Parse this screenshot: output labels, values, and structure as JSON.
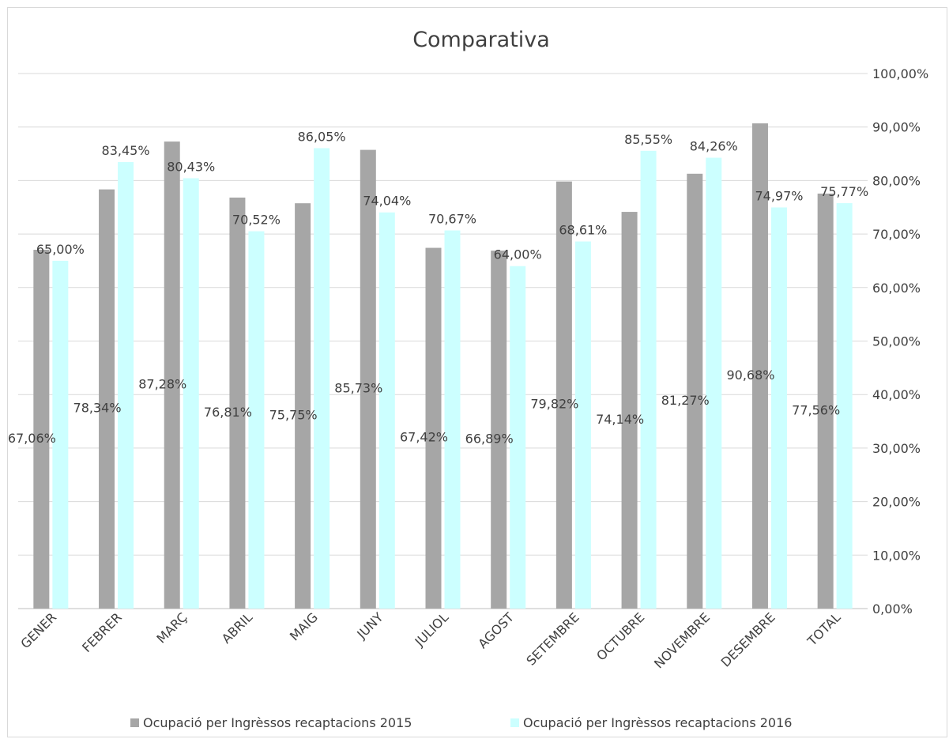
{
  "chart_data": {
    "type": "bar",
    "title": "Comparativa",
    "categories": [
      "GENER",
      "FEBRER",
      "MARÇ",
      "ABRIL",
      "MAIG",
      "JUNY",
      "JULIOL",
      "AGOST",
      "SETEMBRE",
      "OCTUBRE",
      "NOVEMBRE",
      "DESEMBRE",
      "TOTAL"
    ],
    "series": [
      {
        "name": "Ocupació per Ingrèssos recaptacions 2015",
        "color": "#a6a6a6",
        "values": [
          67.06,
          78.34,
          87.28,
          76.81,
          75.75,
          85.73,
          67.42,
          66.89,
          79.82,
          74.14,
          81.27,
          90.68,
          77.56
        ],
        "labels": [
          "67,06%",
          "78,34%",
          "87,28%",
          "76,81%",
          "75,75%",
          "85,73%",
          "67,42%",
          "66,89%",
          "79,82%",
          "74,14%",
          "81,27%",
          "90,68%",
          "77,56%"
        ]
      },
      {
        "name": "Ocupació per Ingrèssos recaptacions 2016",
        "color": "#ccffff",
        "values": [
          65.0,
          83.45,
          80.43,
          70.52,
          86.05,
          74.04,
          70.67,
          64.0,
          68.61,
          85.55,
          84.26,
          74.97,
          75.77
        ],
        "labels": [
          "65,00%",
          "83,45%",
          "80,43%",
          "70,52%",
          "86,05%",
          "74,04%",
          "70,67%",
          "64,00%",
          "68,61%",
          "85,55%",
          "84,26%",
          "74,97%",
          "75,77%"
        ]
      }
    ],
    "y_axis": {
      "position": "right",
      "ylim": [
        0,
        100
      ],
      "ticks": [
        "0,00%",
        "10,00%",
        "20,00%",
        "30,00%",
        "40,00%",
        "50,00%",
        "60,00%",
        "70,00%",
        "80,00%",
        "90,00%",
        "100,00%"
      ]
    },
    "grid": true,
    "legend_position": "bottom"
  }
}
